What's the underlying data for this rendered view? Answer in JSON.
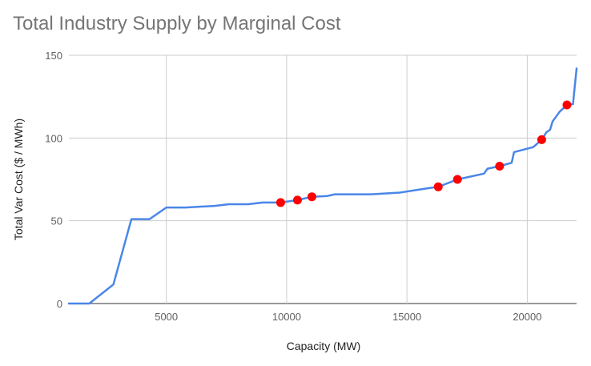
{
  "chart_data": {
    "type": "line",
    "title": "Total Industry Supply by Marginal Cost",
    "xlabel": "Capacity (MW)",
    "ylabel": "Total Var Cost ($ / MWh)",
    "xlim": [
      950,
      22050
    ],
    "ylim": [
      0,
      150
    ],
    "x_ticks": [
      5000,
      10000,
      15000,
      20000
    ],
    "y_ticks": [
      0,
      50,
      100,
      150
    ],
    "x_tick_labels": [
      "5000",
      "10000",
      "15000",
      "20000"
    ],
    "y_tick_labels": [
      "0",
      "50",
      "100",
      "150"
    ],
    "grid": true,
    "colors": {
      "line": "#4a86e8",
      "markers": "#ff0000"
    },
    "series": [
      {
        "values": [
          [
            950,
            0
          ],
          [
            1800,
            0
          ],
          [
            2800,
            11.5
          ],
          [
            3550,
            51
          ],
          [
            4300,
            51
          ],
          [
            5000,
            58
          ],
          [
            5800,
            58
          ],
          [
            7000,
            59
          ],
          [
            7600,
            60
          ],
          [
            8400,
            60
          ],
          [
            9000,
            61
          ],
          [
            9750,
            61
          ],
          [
            10450,
            62.5
          ],
          [
            11050,
            64.5
          ],
          [
            11700,
            65
          ],
          [
            12000,
            66
          ],
          [
            13500,
            66
          ],
          [
            14700,
            67
          ],
          [
            15800,
            69.5
          ],
          [
            16300,
            70.5
          ],
          [
            17100,
            75
          ],
          [
            18200,
            78.5
          ],
          [
            18350,
            81.5
          ],
          [
            18850,
            83
          ],
          [
            19350,
            85
          ],
          [
            19450,
            91.5
          ],
          [
            20250,
            94.5
          ],
          [
            20600,
            99
          ],
          [
            20800,
            103.5
          ],
          [
            20950,
            105
          ],
          [
            21050,
            110
          ],
          [
            21350,
            116
          ],
          [
            21650,
            120
          ],
          [
            21900,
            120.5
          ],
          [
            22050,
            142
          ]
        ]
      },
      {
        "values": [
          [
            9750,
            61
          ],
          [
            10450,
            62.5
          ],
          [
            11050,
            64.5
          ],
          [
            16300,
            70.5
          ],
          [
            17100,
            75
          ],
          [
            18850,
            83
          ],
          [
            20600,
            99
          ],
          [
            21650,
            120
          ]
        ]
      }
    ]
  }
}
